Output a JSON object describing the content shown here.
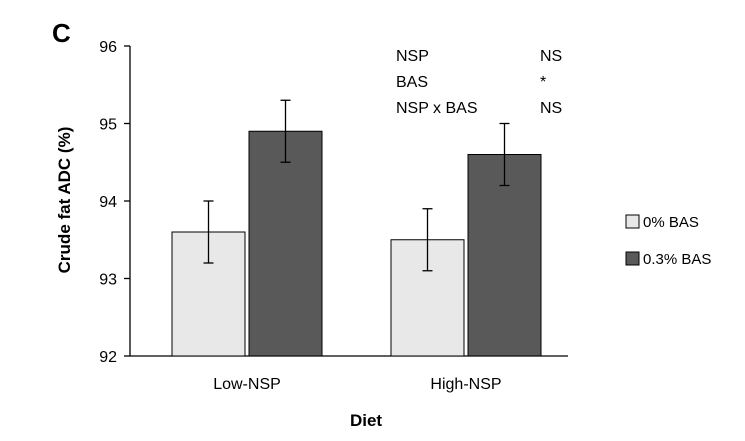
{
  "panel_label": "C",
  "chart_data": {
    "type": "bar",
    "categories": [
      "Low-NSP",
      "High-NSP"
    ],
    "series": [
      {
        "name": "0% BAS",
        "values": [
          93.6,
          93.5
        ],
        "errors": [
          0.4,
          0.4
        ],
        "color": "#e8e8e8"
      },
      {
        "name": "0.3% BAS",
        "values": [
          94.9,
          94.6
        ],
        "errors": [
          0.4,
          0.4
        ],
        "color": "#595959"
      }
    ],
    "xlabel": "Diet",
    "ylabel": "Crude fat ADC (%)",
    "ylim": [
      92,
      96
    ],
    "yticks": [
      "92",
      "93",
      "94",
      "95",
      "96"
    ],
    "grid": false,
    "legend_position": "right",
    "annotations": [
      {
        "label": "NSP",
        "result": "NS"
      },
      {
        "label": "BAS",
        "result": "*"
      },
      {
        "label": "NSP x BAS",
        "result": "NS"
      }
    ]
  }
}
